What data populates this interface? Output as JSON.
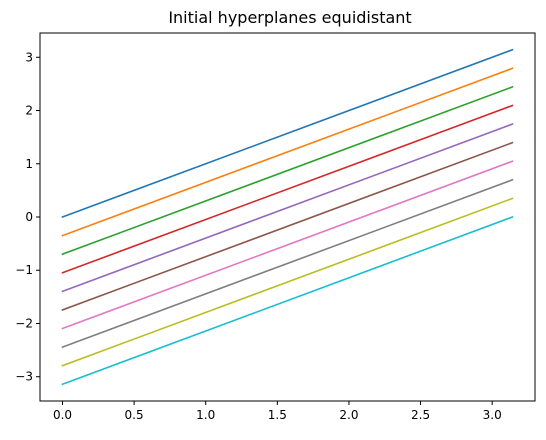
{
  "chart_data": {
    "type": "line",
    "title": "Initial hyperplanes equidistant",
    "xlabel": "",
    "ylabel": "",
    "xlim": [
      -0.157,
      3.299
    ],
    "ylim": [
      -3.456,
      3.456
    ],
    "x": [
      0,
      3.14159
    ],
    "xticks": [
      0.0,
      0.5,
      1.0,
      1.5,
      2.0,
      2.5,
      3.0
    ],
    "xtick_labels": [
      "0.0",
      "0.5",
      "1.0",
      "1.5",
      "2.0",
      "2.5",
      "3.0"
    ],
    "yticks": [
      -3,
      -2,
      -1,
      0,
      1,
      2,
      3
    ],
    "ytick_labels": [
      "−3",
      "−2",
      "−1",
      "0",
      "1",
      "2",
      "3"
    ],
    "grid": false,
    "legend": "none",
    "series": [
      {
        "color": "#1f77b4",
        "values": [
          0.0,
          3.1416
        ]
      },
      {
        "color": "#ff7f0e",
        "values": [
          -0.3491,
          2.7925
        ]
      },
      {
        "color": "#2ca02c",
        "values": [
          -0.6981,
          2.4435
        ]
      },
      {
        "color": "#d62728",
        "values": [
          -1.0472,
          2.0944
        ]
      },
      {
        "color": "#9467bd",
        "values": [
          -1.3963,
          1.7453
        ]
      },
      {
        "color": "#8c564b",
        "values": [
          -1.7453,
          1.3963
        ]
      },
      {
        "color": "#e377c2",
        "values": [
          -2.0944,
          1.0472
        ]
      },
      {
        "color": "#7f7f7f",
        "values": [
          -2.4435,
          0.6981
        ]
      },
      {
        "color": "#bcbd22",
        "values": [
          -2.7925,
          0.3491
        ]
      },
      {
        "color": "#17becf",
        "values": [
          -3.1416,
          0.0
        ]
      }
    ]
  }
}
